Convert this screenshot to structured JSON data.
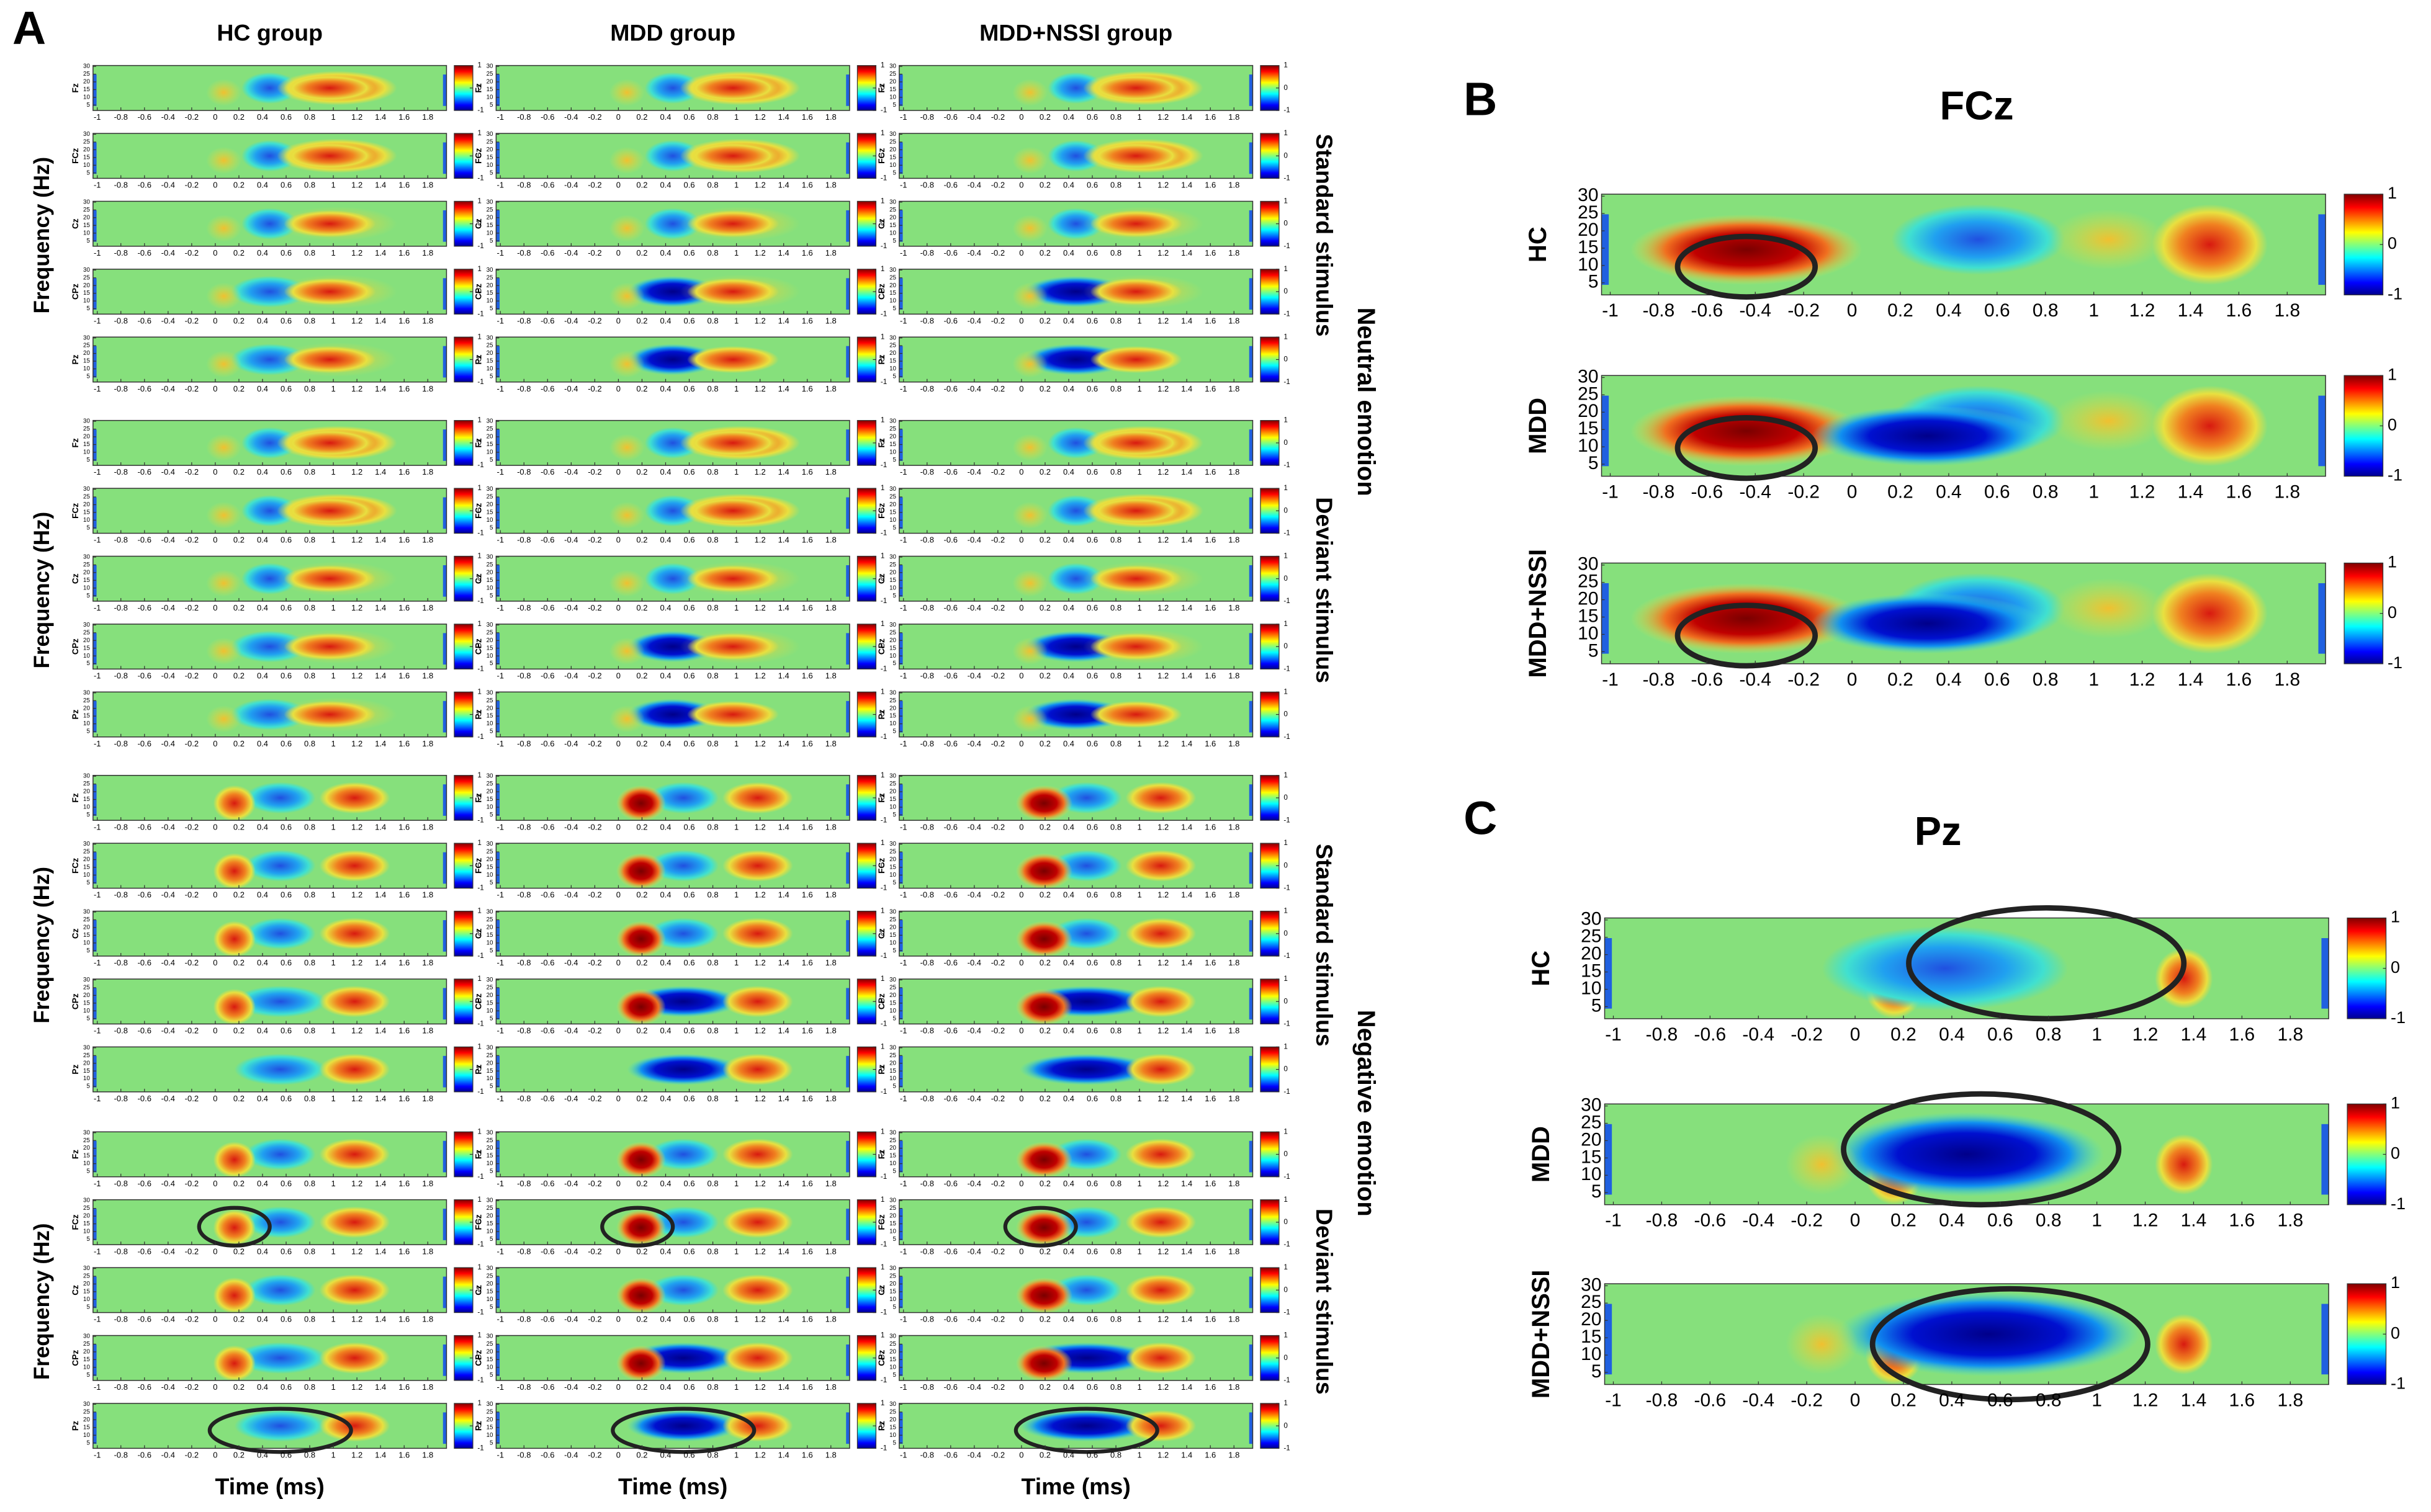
{
  "panel_a": {
    "label": "A",
    "groups": [
      "HC group",
      "MDD group",
      "MDD+NSSI group"
    ],
    "channels": [
      "Fz",
      "FCz",
      "Cz",
      "CPz",
      "Pz"
    ],
    "stimuli": [
      "Standard stimulus",
      "Deviant stimulus",
      "Standard stimulus",
      "Deviant stimulus"
    ],
    "emotions": [
      "Neutral emotion",
      "Negative emotion"
    ],
    "y_label": "Frequency (Hz)",
    "x_label": "Time (ms)",
    "xticks": [
      -1,
      -0.8,
      -0.6,
      -0.4,
      -0.2,
      0,
      0.2,
      0.4,
      0.6,
      0.8,
      1,
      1.2,
      1.4,
      1.6,
      1.8
    ],
    "yticks": [
      5,
      10,
      15,
      20,
      25,
      30
    ],
    "colorbar_ticks": [
      -1,
      0,
      1
    ]
  },
  "panel_b": {
    "label": "B",
    "title": "FCz",
    "rows": [
      "HC",
      "MDD",
      "MDD+NSSI"
    ],
    "xticks": [
      -1,
      -0.8,
      -0.6,
      -0.4,
      -0.2,
      0,
      0.2,
      0.4,
      0.6,
      0.8,
      1,
      1.2,
      1.4,
      1.6,
      1.8
    ],
    "yticks": [
      5,
      10,
      15,
      20,
      25,
      30
    ],
    "colorbar_ticks": [
      -1,
      0,
      1
    ]
  },
  "panel_c": {
    "label": "C",
    "title": "Pz",
    "rows": [
      "HC",
      "MDD",
      "MDD+NSSI"
    ],
    "xticks": [
      -1,
      -0.8,
      -0.6,
      -0.4,
      -0.2,
      0,
      0.2,
      0.4,
      0.6,
      0.8,
      1,
      1.2,
      1.4,
      1.6,
      1.8
    ],
    "yticks": [
      5,
      10,
      15,
      20,
      25,
      30
    ],
    "colorbar_ticks": [
      -1,
      0,
      1
    ]
  }
}
